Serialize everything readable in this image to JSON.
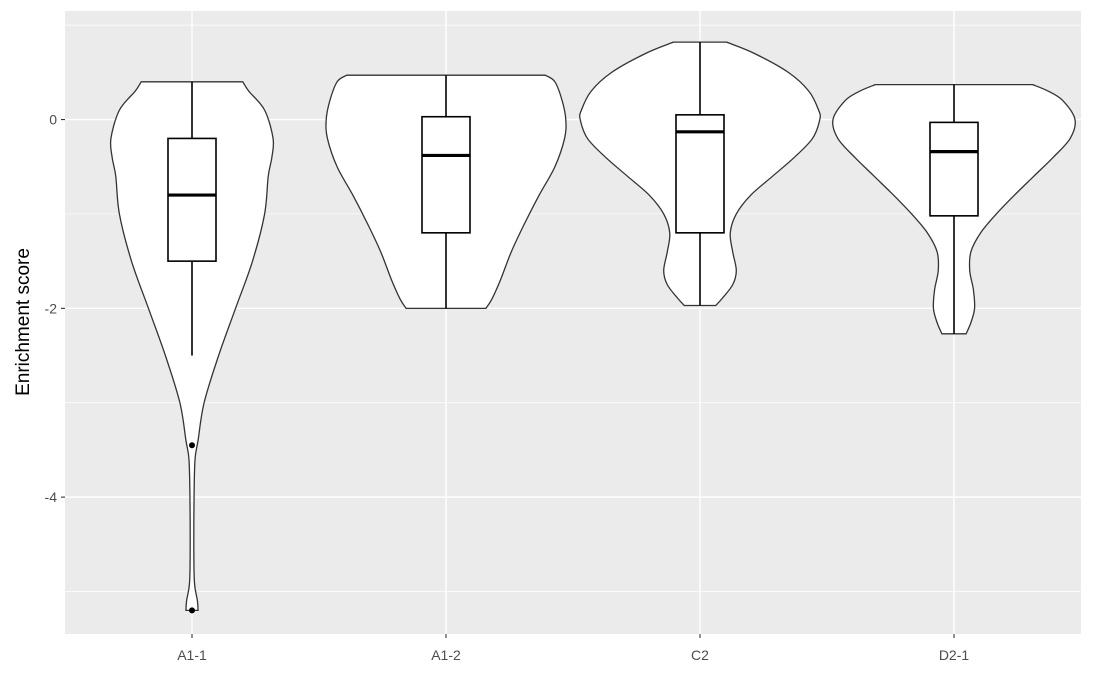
{
  "chart_data": {
    "type": "violin",
    "title": "",
    "xlabel": "",
    "ylabel": "Enrichment score",
    "ylim": [
      -5.45,
      1.15
    ],
    "yticks": [
      0,
      -2,
      -4
    ],
    "ytick_labels": [
      "0",
      "-2",
      "-4"
    ],
    "grid": true,
    "colors": {
      "panel": "#ebebeb",
      "grid": "#ffffff",
      "violin_fill": "#ffffff",
      "outline": "#333333",
      "box": "#000000"
    },
    "categories": [
      "A1-1",
      "A1-2",
      "C2",
      "D2-1"
    ],
    "groups": [
      {
        "name": "A1-1",
        "range": [
          -5.2,
          0.4
        ],
        "box": {
          "q1": -1.5,
          "median": -0.8,
          "q3": -0.2,
          "whisker_low": -2.5,
          "whisker_high": 0.4
        },
        "outliers": [
          -3.45,
          -5.2
        ],
        "density": [
          [
            0.4,
            0.42
          ],
          [
            0.3,
            0.47
          ],
          [
            0.1,
            0.6
          ],
          [
            -0.2,
            0.67
          ],
          [
            -0.4,
            0.66
          ],
          [
            -0.6,
            0.63
          ],
          [
            -1.0,
            0.6
          ],
          [
            -1.5,
            0.5
          ],
          [
            -2.0,
            0.36
          ],
          [
            -2.5,
            0.22
          ],
          [
            -3.0,
            0.1
          ],
          [
            -3.4,
            0.05
          ],
          [
            -3.6,
            0.025
          ],
          [
            -4.0,
            0.017
          ],
          [
            -4.5,
            0.015
          ],
          [
            -4.9,
            0.02
          ],
          [
            -5.1,
            0.045
          ],
          [
            -5.2,
            0.05
          ]
        ]
      },
      {
        "name": "A1-2",
        "range": [
          -2.0,
          0.47
        ],
        "box": {
          "q1": -1.2,
          "median": -0.38,
          "q3": 0.03,
          "whisker_low": -2.0,
          "whisker_high": 0.47
        },
        "outliers": [],
        "density": [
          [
            0.47,
            0.82
          ],
          [
            0.4,
            0.9
          ],
          [
            0.2,
            0.96
          ],
          [
            0.0,
            0.99
          ],
          [
            -0.2,
            0.98
          ],
          [
            -0.5,
            0.9
          ],
          [
            -0.8,
            0.77
          ],
          [
            -1.1,
            0.65
          ],
          [
            -1.4,
            0.54
          ],
          [
            -1.7,
            0.45
          ],
          [
            -1.9,
            0.38
          ],
          [
            -2.0,
            0.33
          ]
        ]
      },
      {
        "name": "C2",
        "range": [
          -1.97,
          0.82
        ],
        "box": {
          "q1": -1.2,
          "median": -0.13,
          "q3": 0.05,
          "whisker_low": -1.97,
          "whisker_high": 0.82
        },
        "outliers": [],
        "density": [
          [
            0.82,
            0.22
          ],
          [
            0.7,
            0.45
          ],
          [
            0.5,
            0.73
          ],
          [
            0.3,
            0.9
          ],
          [
            0.1,
            0.98
          ],
          [
            0.0,
            0.99
          ],
          [
            -0.2,
            0.93
          ],
          [
            -0.4,
            0.78
          ],
          [
            -0.6,
            0.6
          ],
          [
            -0.8,
            0.42
          ],
          [
            -1.0,
            0.3
          ],
          [
            -1.2,
            0.25
          ],
          [
            -1.4,
            0.27
          ],
          [
            -1.6,
            0.3
          ],
          [
            -1.75,
            0.27
          ],
          [
            -1.9,
            0.18
          ],
          [
            -1.97,
            0.13
          ]
        ]
      },
      {
        "name": "D2-1",
        "range": [
          -2.27,
          0.37
        ],
        "box": {
          "q1": -1.02,
          "median": -0.34,
          "q3": -0.03,
          "whisker_low": -2.27,
          "whisker_high": 0.37
        },
        "outliers": [],
        "density": [
          [
            0.37,
            0.65
          ],
          [
            0.3,
            0.78
          ],
          [
            0.2,
            0.9
          ],
          [
            0.0,
            1.0
          ],
          [
            -0.2,
            0.96
          ],
          [
            -0.4,
            0.82
          ],
          [
            -0.6,
            0.66
          ],
          [
            -0.8,
            0.5
          ],
          [
            -1.0,
            0.35
          ],
          [
            -1.2,
            0.22
          ],
          [
            -1.4,
            0.14
          ],
          [
            -1.6,
            0.13
          ],
          [
            -1.8,
            0.16
          ],
          [
            -2.0,
            0.17
          ],
          [
            -2.15,
            0.14
          ],
          [
            -2.27,
            0.1
          ]
        ]
      }
    ]
  }
}
